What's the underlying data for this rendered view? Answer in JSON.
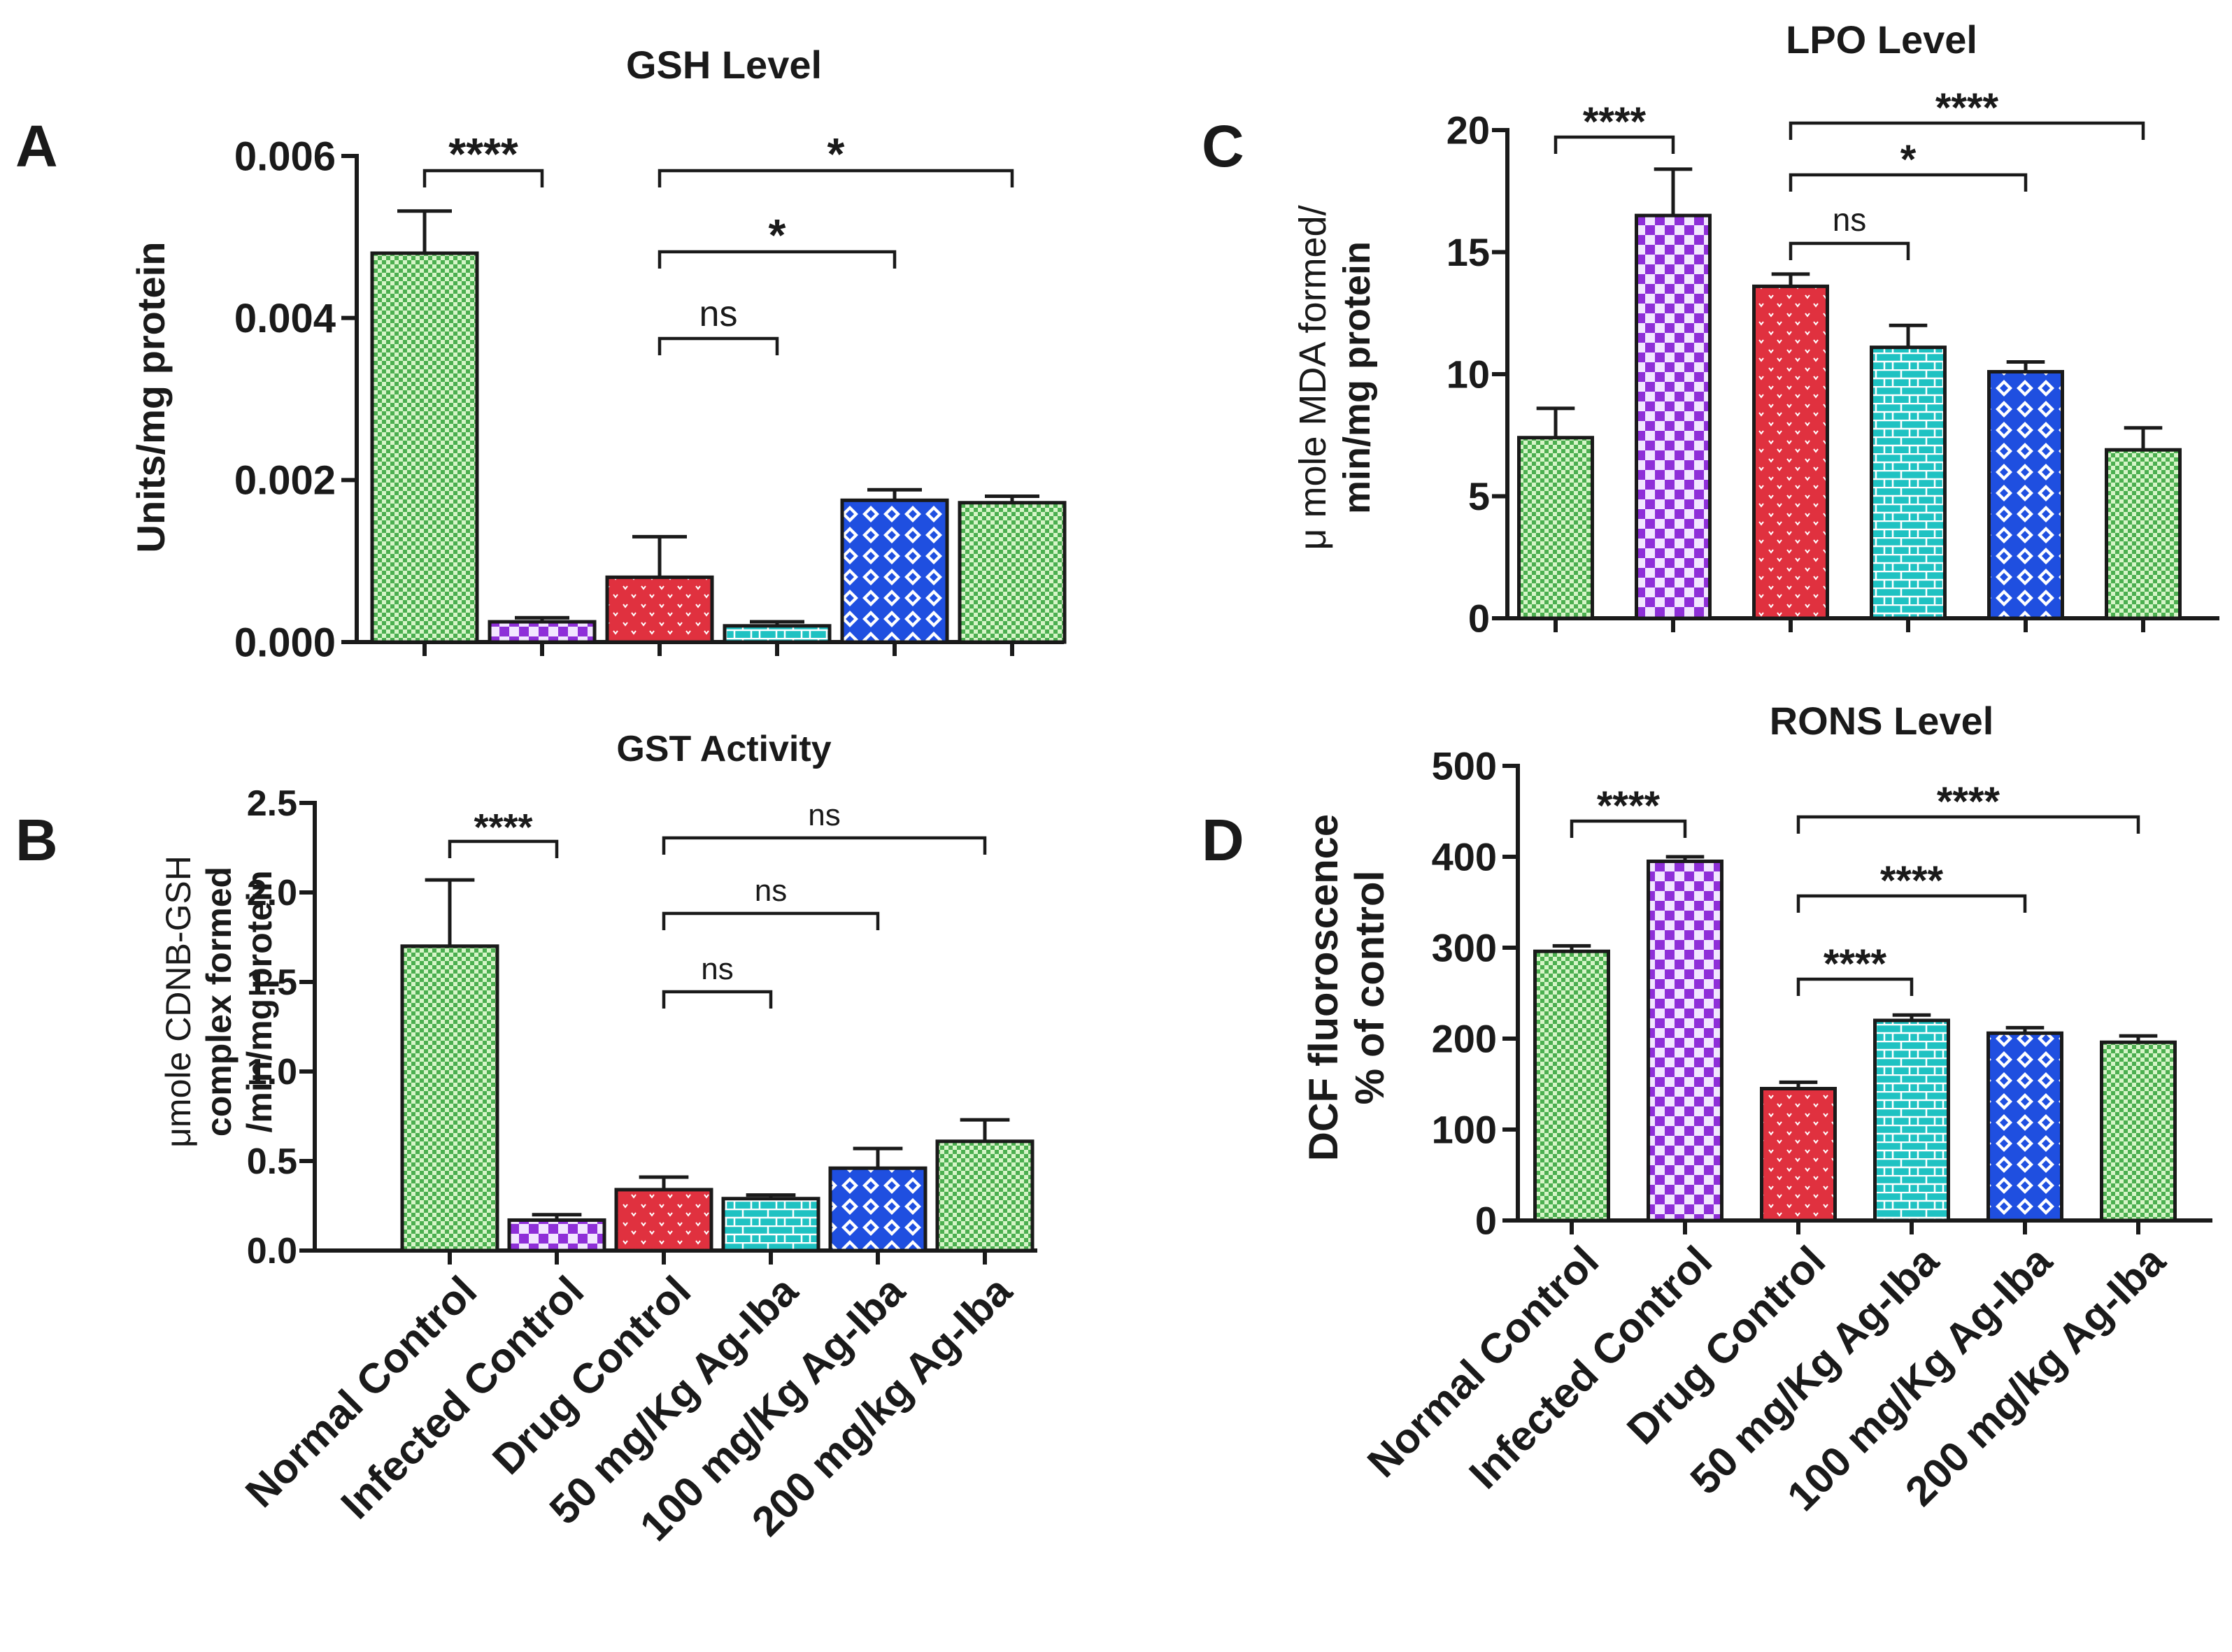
{
  "groups": [
    "Normal Control",
    "Infected Control",
    "Drug Control",
    "50 mg/Kg Ag-Iba",
    "100 mg/Kg Ag-Iba",
    "200 mg/kg Ag-Iba"
  ],
  "colors": {
    "normal": "#4caf50",
    "infected": "#8e2fd8",
    "drug": "#e0313f",
    "dose50": "#1fc2c2",
    "dose100": "#1f4fe0",
    "dose200": "#4caf50"
  },
  "chart_data": [
    {
      "panel": "A",
      "type": "bar",
      "title": "GSH Level",
      "ylabel": "Units/mg protein",
      "ylim": [
        0,
        0.006
      ],
      "yticks": [
        "0.000",
        "0.002",
        "0.004",
        "0.006"
      ],
      "categories": [
        "Normal Control",
        "Infected Control",
        "Drug Control",
        "50 mg/Kg Ag-Iba",
        "100 mg/Kg Ag-Iba",
        "200 mg/kg Ag-Iba"
      ],
      "values": [
        0.0048,
        0.00025,
        0.0008,
        0.0002,
        0.00175,
        0.00172
      ],
      "errors": [
        0.00052,
        5e-05,
        0.0005,
        5e-05,
        0.00013,
        8e-05
      ],
      "significance": [
        {
          "from": 0,
          "to": 1,
          "label": "****"
        },
        {
          "from": 2,
          "to": 3,
          "label": "ns"
        },
        {
          "from": 2,
          "to": 4,
          "label": "*"
        },
        {
          "from": 2,
          "to": 5,
          "label": "*"
        }
      ]
    },
    {
      "panel": "B",
      "type": "bar",
      "title": "GST Activity",
      "ylabel_lines": [
        "μmole CDNB-GSH",
        "complex formed",
        "/min/mg protein"
      ],
      "ylim": [
        0,
        2.5
      ],
      "yticks": [
        "0.0",
        "0.5",
        "1.0",
        "1.5",
        "2.0",
        "2.5"
      ],
      "categories": [
        "Normal Control",
        "Infected Control",
        "Drug Control",
        "50 mg/Kg Ag-Iba",
        "100 mg/Kg Ag-Iba",
        "200 mg/kg Ag-Iba"
      ],
      "values": [
        1.7,
        0.17,
        0.34,
        0.29,
        0.46,
        0.61
      ],
      "errors": [
        0.37,
        0.03,
        0.07,
        0.02,
        0.11,
        0.12
      ],
      "significance": [
        {
          "from": 0,
          "to": 1,
          "label": "****"
        },
        {
          "from": 2,
          "to": 3,
          "label": "ns"
        },
        {
          "from": 2,
          "to": 4,
          "label": "ns"
        },
        {
          "from": 2,
          "to": 5,
          "label": "ns"
        }
      ]
    },
    {
      "panel": "C",
      "type": "bar",
      "title": "LPO Level",
      "ylabel_lines": [
        "μ mole MDA formed/",
        "min/mg protein"
      ],
      "ylim": [
        0,
        20
      ],
      "yticks": [
        "0",
        "5",
        "10",
        "15",
        "20"
      ],
      "categories": [
        "Normal Control",
        "Infected Control",
        "Drug Control",
        "50 mg/Kg Ag-Iba",
        "100 mg/Kg Ag-Iba",
        "200 mg/kg Ag-Iba"
      ],
      "values": [
        7.4,
        16.5,
        13.6,
        11.1,
        10.1,
        6.9
      ],
      "errors": [
        1.2,
        1.9,
        0.5,
        0.9,
        0.4,
        0.9
      ],
      "significance": [
        {
          "from": 0,
          "to": 1,
          "label": "****"
        },
        {
          "from": 2,
          "to": 3,
          "label": "ns"
        },
        {
          "from": 2,
          "to": 4,
          "label": "*"
        },
        {
          "from": 2,
          "to": 5,
          "label": "****"
        }
      ]
    },
    {
      "panel": "D",
      "type": "bar",
      "title": "RONS Level",
      "ylabel_lines": [
        "DCF fluoroscence",
        "% of control"
      ],
      "ylim": [
        0,
        500
      ],
      "yticks": [
        "0",
        "100",
        "200",
        "300",
        "400",
        "500"
      ],
      "categories": [
        "Normal Control",
        "Infected Control",
        "Drug Control",
        "50 mg/Kg Ag-Iba",
        "100 mg/Kg Ag-Iba",
        "200 mg/kg Ag-Iba"
      ],
      "values": [
        296,
        395,
        145,
        220,
        206,
        196
      ],
      "errors": [
        6,
        5,
        7,
        6,
        6,
        7
      ],
      "significance": [
        {
          "from": 0,
          "to": 1,
          "label": "****"
        },
        {
          "from": 2,
          "to": 3,
          "label": "****"
        },
        {
          "from": 2,
          "to": 4,
          "label": "****"
        },
        {
          "from": 2,
          "to": 5,
          "label": "****"
        }
      ]
    }
  ]
}
